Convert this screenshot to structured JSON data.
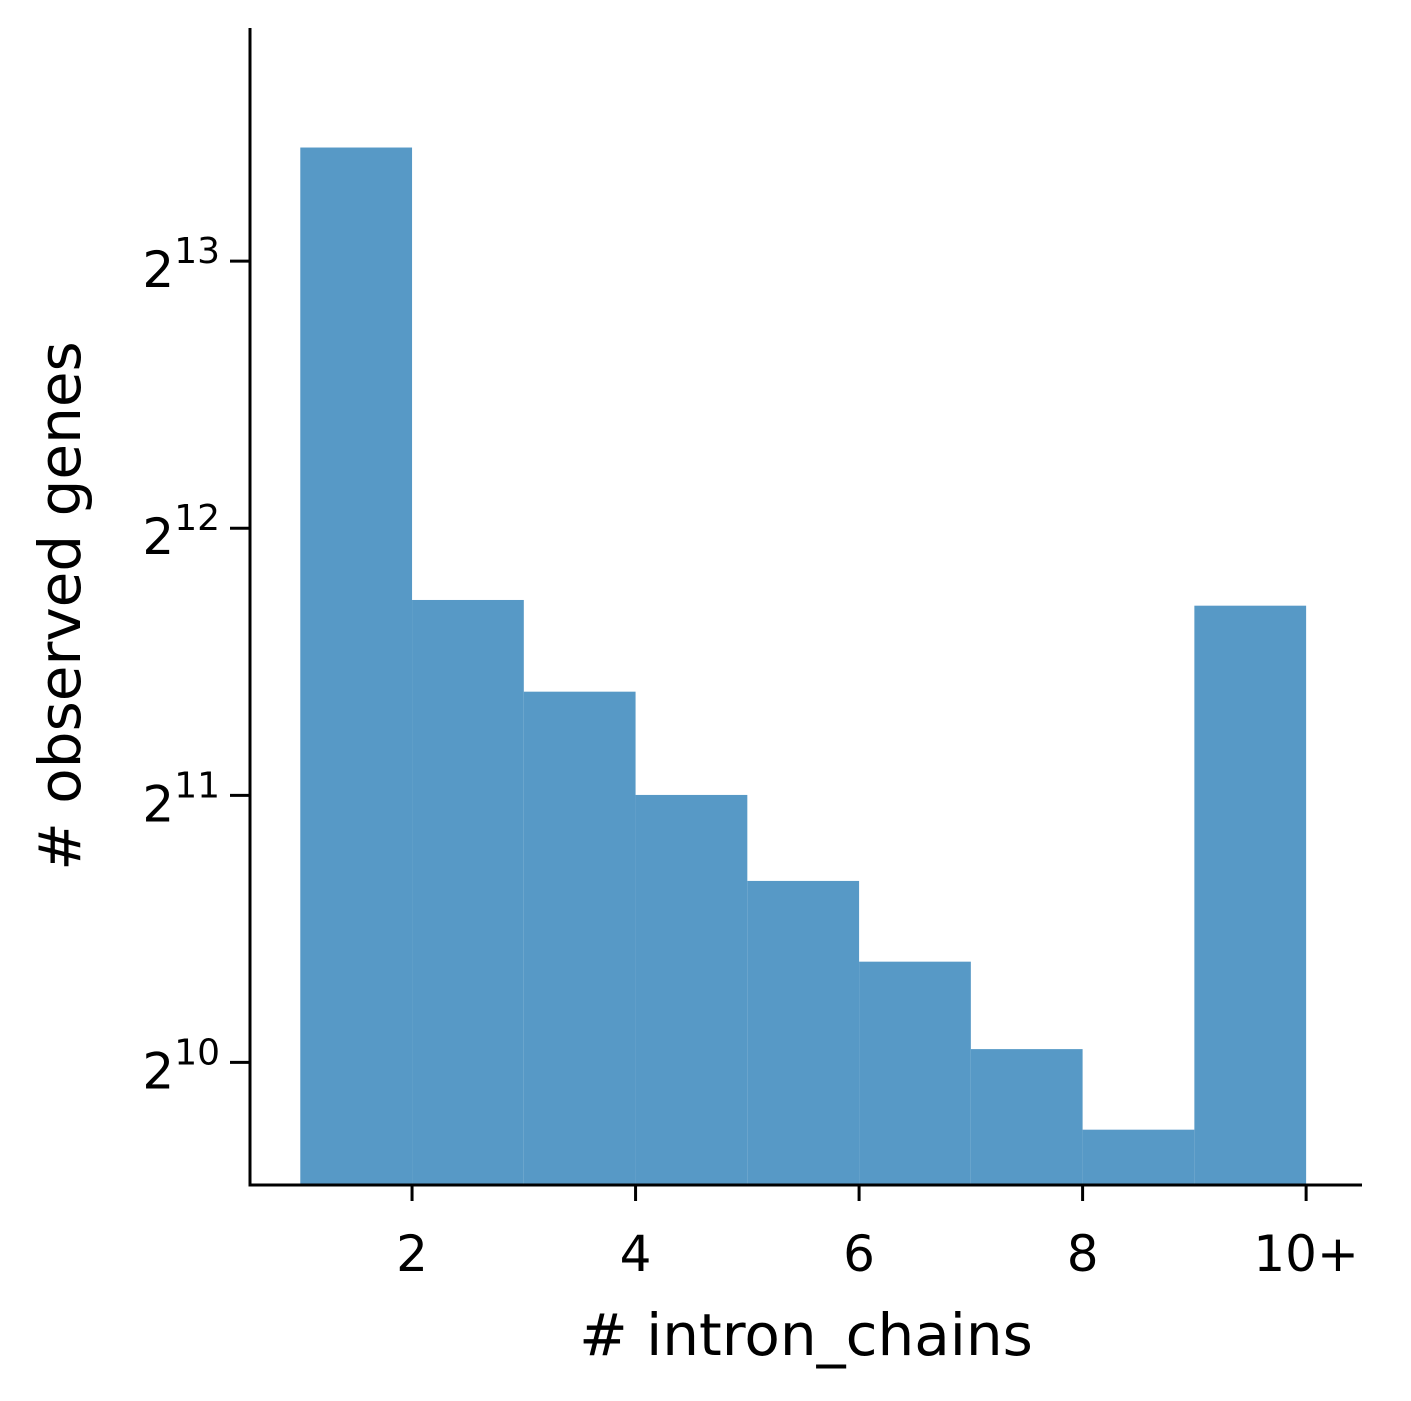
{
  "chart_data": {
    "type": "bar",
    "subtype": "histogram",
    "title": "",
    "xlabel": "# intron_chains",
    "ylabel": "# observed genes",
    "y_scale": "log2",
    "bins": [
      {
        "x_start": 1,
        "x_end": 2,
        "value": 11000
      },
      {
        "x_start": 2,
        "x_end": 3,
        "value": 3400
      },
      {
        "x_start": 3,
        "x_end": 4,
        "value": 2680
      },
      {
        "x_start": 4,
        "x_end": 5,
        "value": 2050
      },
      {
        "x_start": 5,
        "x_end": 6,
        "value": 1640
      },
      {
        "x_start": 6,
        "x_end": 7,
        "value": 1330
      },
      {
        "x_start": 7,
        "x_end": 8,
        "value": 1060
      },
      {
        "x_start": 8,
        "x_end": 9,
        "value": 860
      },
      {
        "x_start": 9,
        "x_end": 10,
        "value": 3350
      }
    ],
    "xlim": [
      0.55,
      10.5
    ],
    "ylim": [
      745,
      15000
    ],
    "x_ticks": [
      {
        "value": 2,
        "label": "2"
      },
      {
        "value": 4,
        "label": "4"
      },
      {
        "value": 6,
        "label": "6"
      },
      {
        "value": 8,
        "label": "8"
      },
      {
        "value": 10,
        "label": "10+"
      }
    ],
    "y_ticks": [
      {
        "value": 1024,
        "base": "2",
        "exp": "10"
      },
      {
        "value": 2048,
        "base": "2",
        "exp": "11"
      },
      {
        "value": 4096,
        "base": "2",
        "exp": "12"
      },
      {
        "value": 8192,
        "base": "2",
        "exp": "13"
      }
    ],
    "bar_color": "#5799c6",
    "grid": false,
    "legend": "none"
  }
}
